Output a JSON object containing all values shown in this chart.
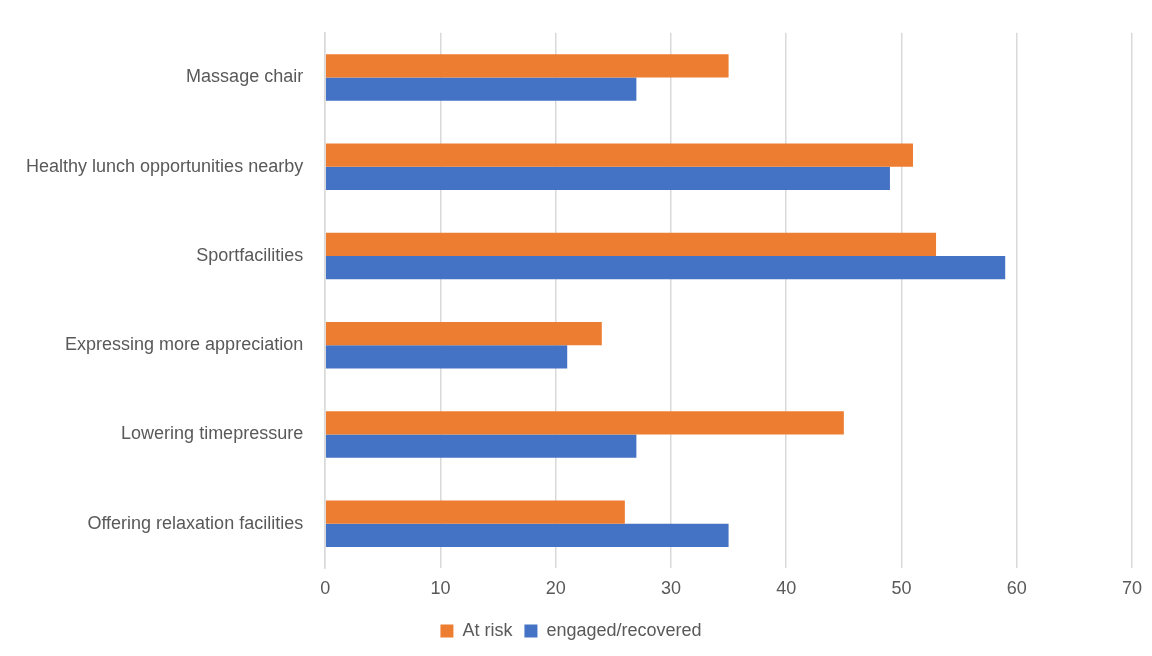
{
  "chart_data": {
    "type": "bar",
    "orientation": "horizontal",
    "categories": [
      "Massage chair",
      "Healthy lunch opportunities nearby",
      "Sportfacilities",
      "Expressing more appreciation",
      "Lowering timepressure",
      "Offering relaxation facilities"
    ],
    "series": [
      {
        "name": "At risk",
        "color": "#ed7d31",
        "values": [
          35,
          51,
          53,
          24,
          45,
          26
        ]
      },
      {
        "name": "engaged/recovered",
        "color": "#4472c4",
        "values": [
          27,
          49,
          59,
          21,
          27,
          35
        ]
      }
    ],
    "xlim": [
      0,
      70
    ],
    "xticks": [
      0,
      10,
      20,
      30,
      40,
      50,
      60,
      70
    ],
    "grid": "x",
    "legend": "bottom"
  }
}
